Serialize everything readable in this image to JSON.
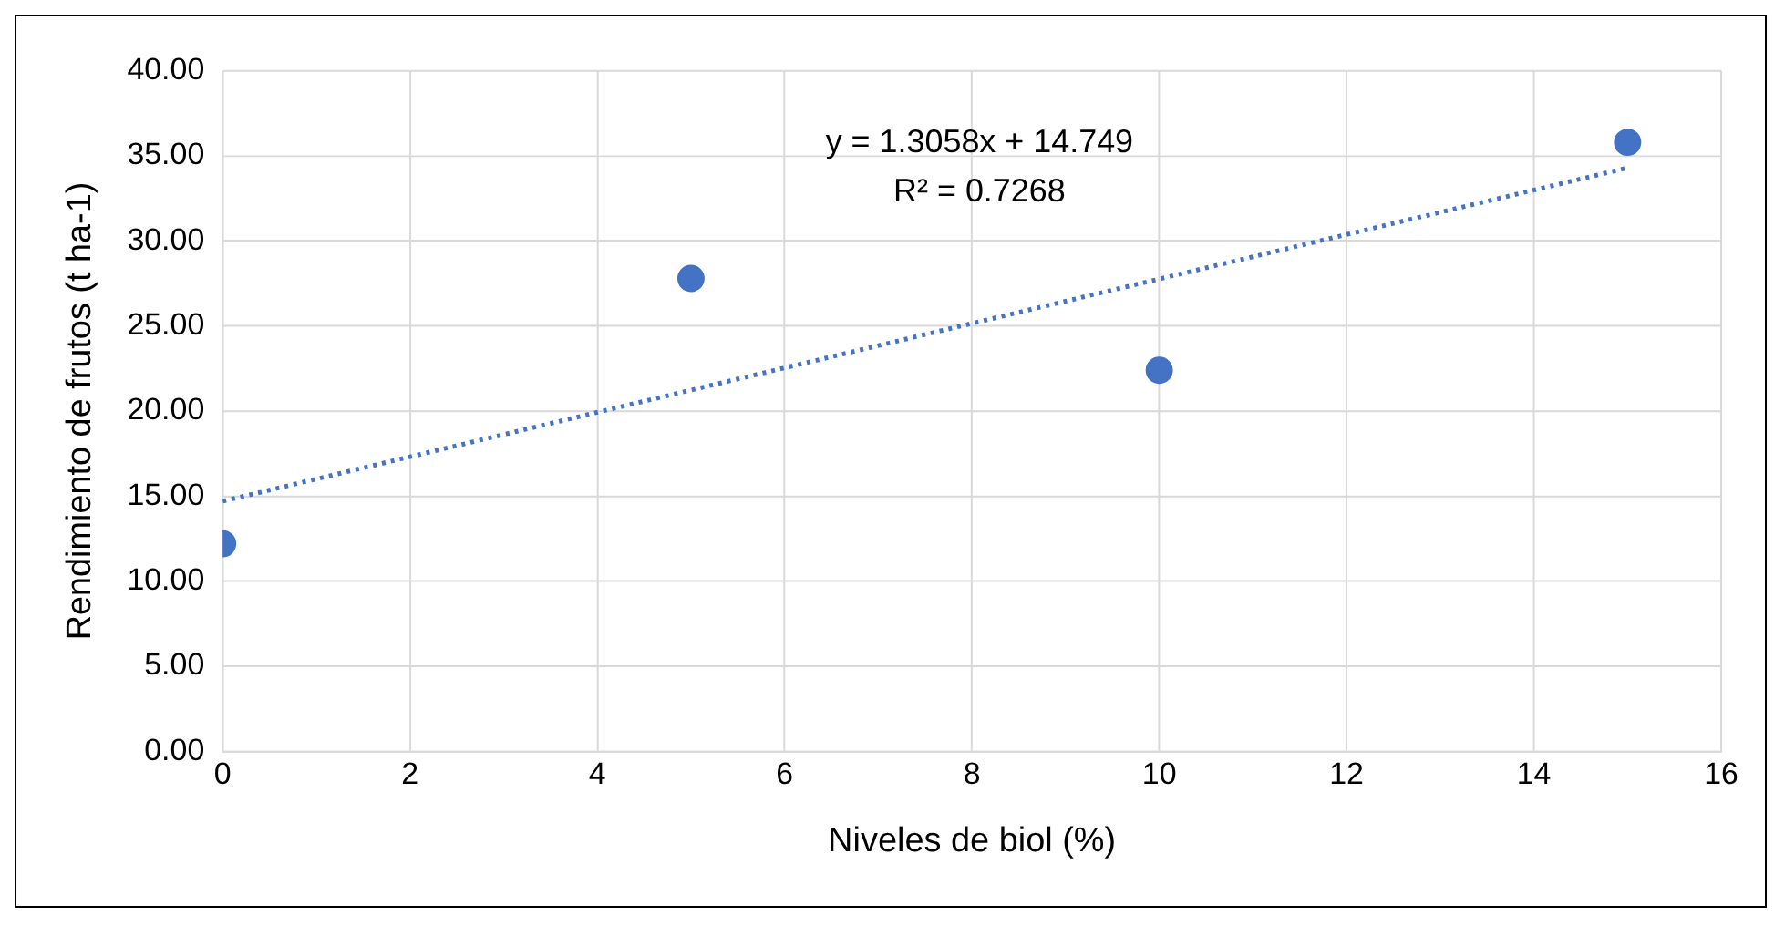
{
  "chart_data": {
    "type": "scatter",
    "xlabel": "Niveles de biol (%)",
    "ylabel": "Rendimiento de frutos (t ha-1)",
    "annotations": [
      "y = 1.3058x + 14.749",
      "R² = 0.7268"
    ],
    "series": [
      {
        "type": "scatter",
        "color": "#4472c4",
        "marker": "circle",
        "x": [
          0,
          5,
          10,
          15
        ],
        "values": [
          12.2,
          27.8,
          22.4,
          35.8
        ]
      },
      {
        "type": "line",
        "color": "#4472c4",
        "marker": "none",
        "line_style": "dotted",
        "x": [
          0,
          15
        ],
        "values": [
          14.7,
          34.3
        ]
      }
    ],
    "xlim": [
      0,
      16
    ],
    "xticks": [
      0,
      2,
      4,
      6,
      8,
      10,
      12,
      14,
      16
    ],
    "ylim": [
      0,
      40
    ],
    "yticks": [
      {
        "value": 0,
        "label": "0.00"
      },
      {
        "value": 5,
        "label": "5.00"
      },
      {
        "value": 10,
        "label": "10.00"
      },
      {
        "value": 15,
        "label": "15.00"
      },
      {
        "value": 20,
        "label": "20.00"
      },
      {
        "value": 25,
        "label": "25.00"
      },
      {
        "value": 30,
        "label": "30.00"
      },
      {
        "value": 35,
        "label": "35.00"
      },
      {
        "value": 40,
        "label": "40.00"
      }
    ],
    "grid": true
  }
}
